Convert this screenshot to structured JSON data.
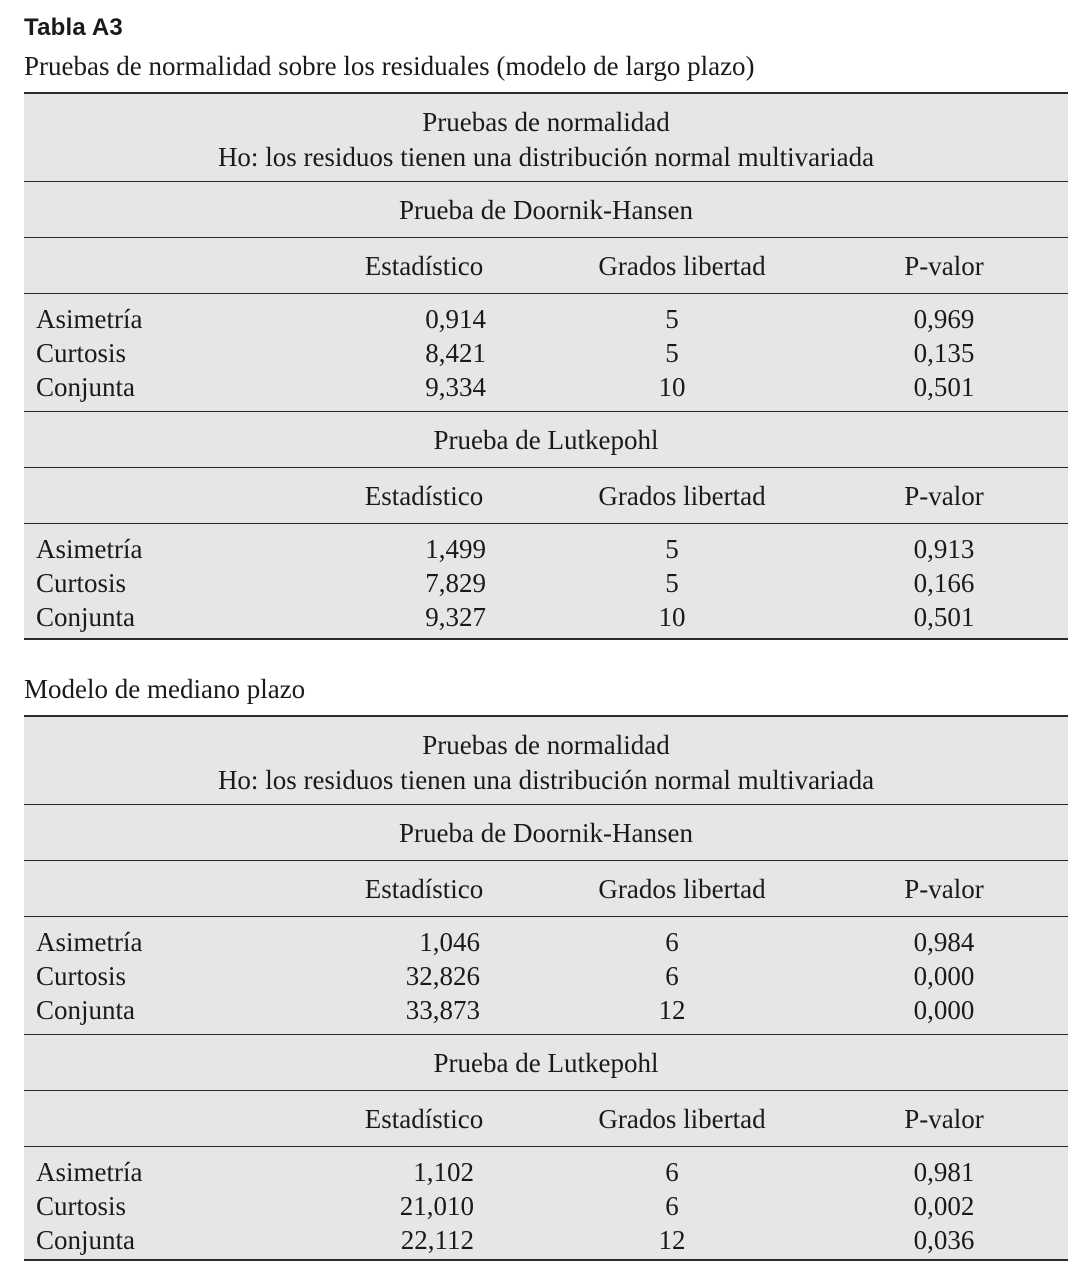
{
  "caption": {
    "title": "Tabla A3",
    "subtitle": "Pruebas de normalidad sobre los residuales (modelo de largo plazo)"
  },
  "second_label": "Modelo de mediano plazo",
  "columns": {
    "statistic": "Estadístico",
    "df": "Grados libertad",
    "pvalue": "P-valor"
  },
  "tables": [
    {
      "header_line1": "Pruebas de normalidad",
      "header_line2": "Ho: los residuos tienen una distribución normal multivariada",
      "tests": [
        {
          "name": "Prueba de Doornik-Hansen",
          "rows": [
            {
              "label": "Asimetría",
              "stat": "0,914",
              "df": "5",
              "p": "0,969"
            },
            {
              "label": "Curtosis",
              "stat": "8,421",
              "df": "5",
              "p": "0,135"
            },
            {
              "label": "Conjunta",
              "stat": "9,334",
              "df": "10",
              "p": "0,501"
            }
          ]
        },
        {
          "name": "Prueba de Lutkepohl",
          "rows": [
            {
              "label": "Asimetría",
              "stat": "1,499",
              "df": "5",
              "p": "0,913"
            },
            {
              "label": "Curtosis",
              "stat": "7,829",
              "df": "5",
              "p": "0,166"
            },
            {
              "label": "Conjunta",
              "stat": "9,327",
              "df": "10",
              "p": "0,501"
            }
          ]
        }
      ]
    },
    {
      "header_line1": "Pruebas de normalidad",
      "header_line2": "Ho: los residuos tienen una distribución normal multivariada",
      "tests": [
        {
          "name": "Prueba de Doornik-Hansen",
          "rows": [
            {
              "label": "Asimetría",
              "stat": "1,046",
              "df": "6",
              "p": "0,984"
            },
            {
              "label": "Curtosis",
              "stat": "32,826",
              "df": "6",
              "p": "0,000"
            },
            {
              "label": "Conjunta",
              "stat": "33,873",
              "df": "12",
              "p": "0,000"
            }
          ]
        },
        {
          "name": "Prueba de Lutkepohl",
          "rows": [
            {
              "label": "Asimetría",
              "stat": "1,102",
              "df": "6",
              "p": "0,981"
            },
            {
              "label": "Curtosis",
              "stat": "21,010",
              "df": "6",
              "p": "0,002"
            },
            {
              "label": "Conjunta",
              "stat": "22,112",
              "df": "12",
              "p": "0,036"
            }
          ]
        }
      ]
    }
  ]
}
